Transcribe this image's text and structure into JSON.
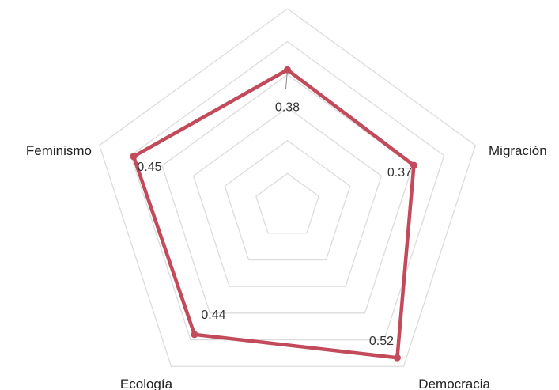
{
  "chart_data": {
    "type": "radar",
    "categories": [
      "Migración",
      "Democracia",
      "Ecología",
      "Feminismo",
      ""
    ],
    "series": [
      {
        "values": [
          0.37,
          0.52,
          0.44,
          0.45,
          0.38
        ],
        "color": "#c24a5a"
      }
    ],
    "data_labels": [
      "0.37",
      "0.52",
      "0.44",
      "0.45",
      "0.38"
    ],
    "rlim": [
      0,
      0.55
    ],
    "grid_rings": 6,
    "grid": true,
    "legend": "none"
  }
}
